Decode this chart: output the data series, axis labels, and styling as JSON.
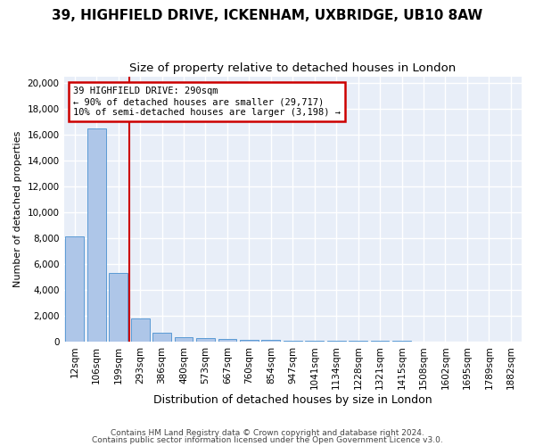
{
  "title1": "39, HIGHFIELD DRIVE, ICKENHAM, UXBRIDGE, UB10 8AW",
  "title2": "Size of property relative to detached houses in London",
  "xlabel": "Distribution of detached houses by size in London",
  "ylabel": "Number of detached properties",
  "bar_color": "#aec6e8",
  "bar_edge_color": "#5b9bd5",
  "categories": [
    "12sqm",
    "106sqm",
    "199sqm",
    "293sqm",
    "386sqm",
    "480sqm",
    "573sqm",
    "667sqm",
    "760sqm",
    "854sqm",
    "947sqm",
    "1041sqm",
    "1134sqm",
    "1228sqm",
    "1321sqm",
    "1415sqm",
    "1508sqm",
    "1602sqm",
    "1695sqm",
    "1789sqm",
    "1882sqm"
  ],
  "values": [
    8100,
    16500,
    5300,
    1800,
    650,
    350,
    250,
    200,
    150,
    100,
    80,
    60,
    50,
    40,
    30,
    25,
    20,
    18,
    15,
    12,
    10
  ],
  "vline_x": 2.5,
  "vline_color": "#cc0000",
  "annotation_line1": "39 HIGHFIELD DRIVE: 290sqm",
  "annotation_line2": "← 90% of detached houses are smaller (29,717)",
  "annotation_line3": "10% of semi-detached houses are larger (3,198) →",
  "annotation_box_color": "#cc0000",
  "ylim": [
    0,
    20500
  ],
  "yticks": [
    0,
    2000,
    4000,
    6000,
    8000,
    10000,
    12000,
    14000,
    16000,
    18000,
    20000
  ],
  "footer1": "Contains HM Land Registry data © Crown copyright and database right 2024.",
  "footer2": "Contains public sector information licensed under the Open Government Licence v3.0.",
  "plot_bg_color": "#e8eef8",
  "fig_bg_color": "#ffffff",
  "grid_color": "#ffffff",
  "title1_fontsize": 11,
  "title2_fontsize": 9.5,
  "bar_width": 0.85,
  "ylabel_fontsize": 8,
  "xlabel_fontsize": 9,
  "tick_fontsize": 7.5,
  "footer_fontsize": 6.5
}
